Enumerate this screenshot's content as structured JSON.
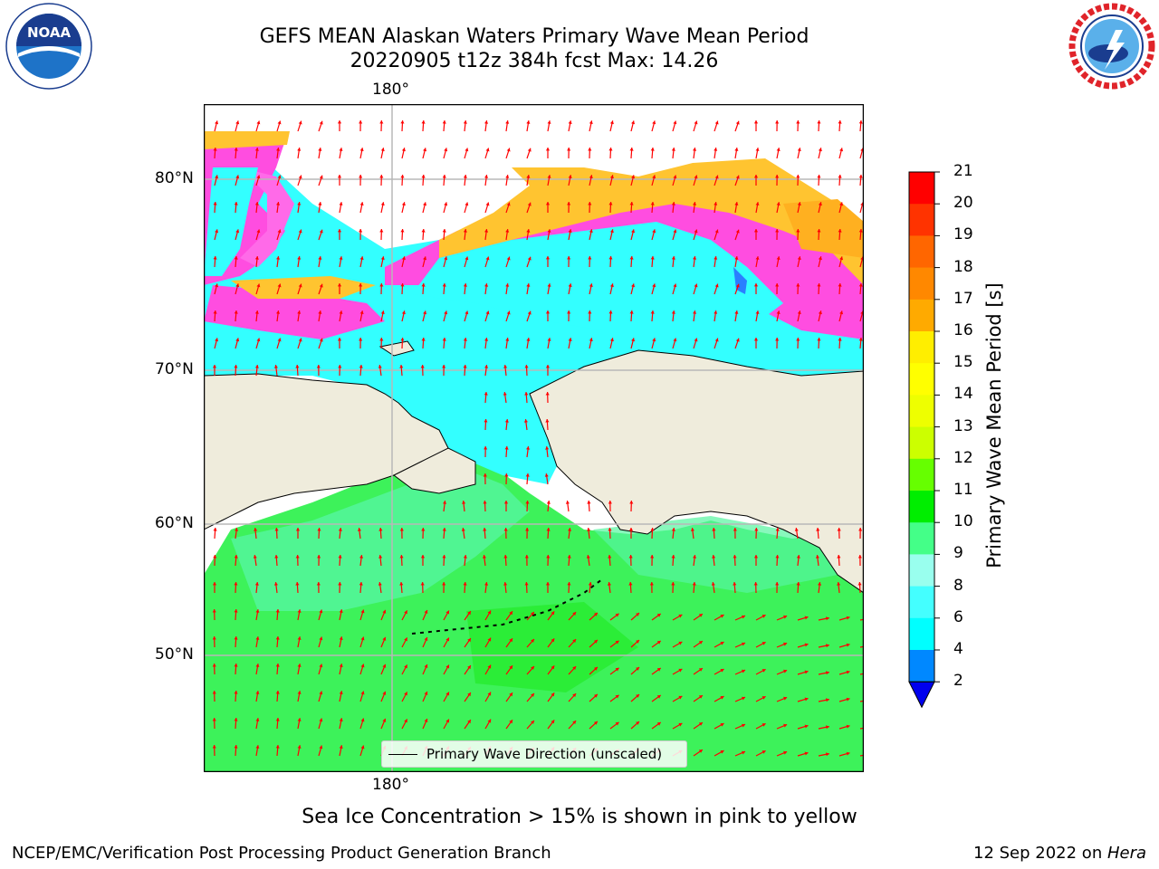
{
  "header": {
    "title_line1": "GEFS MEAN Alaskan Waters Primary Wave Mean Period",
    "title_line2": "20220905 t12z 384h fcst   Max: 14.26"
  },
  "logos": {
    "left": {
      "text": "NOAA",
      "ring_text": "NATIONAL OCEANIC AND ATMOSPHERIC ADMINISTRATION · U.S. DEPARTMENT OF COMMERCE"
    },
    "right": {
      "ring_text": "NATIONAL WEATHER SERVICE"
    }
  },
  "map": {
    "lon_top_label": "180°",
    "lon_bottom_label": "180°",
    "lat_labels": [
      "80°N",
      "70°N",
      "60°N",
      "50°N"
    ],
    "legend_label": "Primary Wave Direction (unscaled)",
    "colors": {
      "land": "#efecdc",
      "ice_pink": "#ff44dd",
      "ice_yellow": "#ffc020",
      "sea_cyan": "#33ffff",
      "sea_green": "#33ee33",
      "arrow": "#ff0000"
    }
  },
  "colorbar": {
    "label": "Primary Wave Mean Period [s]",
    "ticks": [
      "21",
      "20",
      "19",
      "18",
      "17",
      "16",
      "15",
      "14",
      "13",
      "12",
      "11",
      "10",
      "9",
      "8",
      "6",
      "4",
      "2"
    ],
    "colors": [
      "#ff0000",
      "#ff3300",
      "#ff6600",
      "#ff8800",
      "#ffaa00",
      "#ffee00",
      "#ffff00",
      "#eeff00",
      "#ccff00",
      "#66ff00",
      "#00ee00",
      "#44ff88",
      "#99ffee",
      "#44ffff",
      "#00ffff",
      "#0088ff",
      "#0000ee"
    ]
  },
  "caption": "Sea Ice Concentration > 15% is shown in pink to yellow",
  "footer": {
    "left": "NCEP/EMC/Verification Post Processing Product Generation Branch",
    "right_date": "12 Sep 2022 on ",
    "right_machine": "Hera"
  }
}
